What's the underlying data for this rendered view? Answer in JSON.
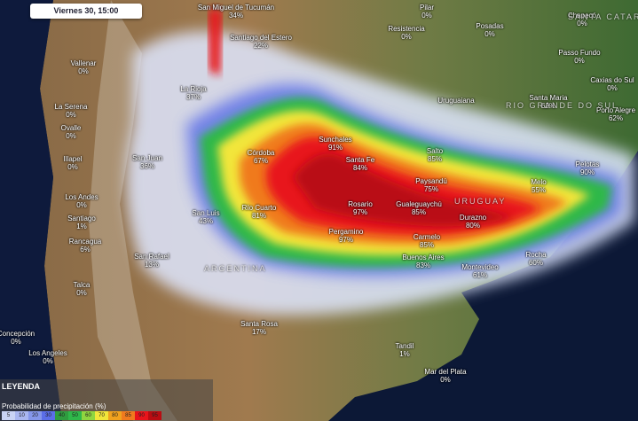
{
  "header": {
    "datetime": "Viernes 30, 15:00"
  },
  "places": [
    {
      "name": "San Miguel de Tucumán",
      "value": "34%"
    },
    {
      "name": "Santiago del Estero",
      "value": "22%"
    },
    {
      "name": "La Rioja",
      "value": "37%"
    },
    {
      "name": "San Juan",
      "value": "36%"
    },
    {
      "name": "Córdoba",
      "value": "67%"
    },
    {
      "name": "San Luis",
      "value": "43%"
    },
    {
      "name": "Río Cuarto",
      "value": "81%"
    },
    {
      "name": "Sunchales",
      "value": "91%"
    },
    {
      "name": "Santa Fe",
      "value": "84%"
    },
    {
      "name": "Rosario",
      "value": "97%"
    },
    {
      "name": "Pergamino",
      "value": "97%"
    },
    {
      "name": "Gualeguaychú",
      "value": "85%"
    },
    {
      "name": "Paysandú",
      "value": "75%"
    },
    {
      "name": "Salto",
      "value": "85%"
    },
    {
      "name": "Durazno",
      "value": "80%"
    },
    {
      "name": "Carmelo",
      "value": "85%"
    },
    {
      "name": "Buenos Aires",
      "value": "83%"
    },
    {
      "name": "Montevideo",
      "value": "61%"
    },
    {
      "name": "Rocha",
      "value": "60%"
    },
    {
      "name": "Melo",
      "value": "55%"
    },
    {
      "name": "Pelotas",
      "value": "90%"
    },
    {
      "name": "Porto Alegre",
      "value": "62%"
    },
    {
      "name": "Caxias do Sul",
      "value": "0%"
    },
    {
      "name": "Santa Maria",
      "value": "62%"
    },
    {
      "name": "Passo Fundo",
      "value": "0%"
    },
    {
      "name": "Chapecó",
      "value": "0%"
    },
    {
      "name": "Pilar",
      "value": "0%"
    },
    {
      "name": "Resistencia",
      "value": "0%"
    },
    {
      "name": "Posadas",
      "value": "0%"
    },
    {
      "name": "Uruguaiana",
      "value": ""
    },
    {
      "name": "Santa Rosa",
      "value": "17%"
    },
    {
      "name": "Tandil",
      "value": "1%"
    },
    {
      "name": "Mar del Plata",
      "value": "0%"
    },
    {
      "name": "San Rafael",
      "value": "13%"
    },
    {
      "name": "Vallenar",
      "value": "0%"
    },
    {
      "name": "La Serena",
      "value": "0%"
    },
    {
      "name": "Ovalle",
      "value": "0%"
    },
    {
      "name": "Illapel",
      "value": "0%"
    },
    {
      "name": "Los Andes",
      "value": "0%"
    },
    {
      "name": "Santiago",
      "value": "1%"
    },
    {
      "name": "Rancagua",
      "value": "6%"
    },
    {
      "name": "Talca",
      "value": "0%"
    },
    {
      "name": "Concepción",
      "value": "0%"
    },
    {
      "name": "Los Angeles",
      "value": "0%"
    }
  ],
  "regions": [
    "ARGENTINA",
    "URUGUAY",
    "RIO GRANDE DO SUL",
    "SANTA CATARINA"
  ],
  "legend": {
    "title": "LEYENDA",
    "subtitle": "Probabilidad de precipitación (%)",
    "steps": [
      {
        "label": "5",
        "color": "#c9d3f5"
      },
      {
        "label": "10",
        "color": "#a9b6f0"
      },
      {
        "label": "20",
        "color": "#8496ea"
      },
      {
        "label": "30",
        "color": "#5b6ee8"
      },
      {
        "label": "40",
        "color": "#2f9c3f"
      },
      {
        "label": "50",
        "color": "#2fb84a"
      },
      {
        "label": "60",
        "color": "#8fd640"
      },
      {
        "label": "70",
        "color": "#f2e63a"
      },
      {
        "label": "80",
        "color": "#f0a21e"
      },
      {
        "label": "85",
        "color": "#f07a1e"
      },
      {
        "label": "90",
        "color": "#e8141b"
      },
      {
        "label": "95",
        "color": "#b90c12"
      }
    ]
  }
}
